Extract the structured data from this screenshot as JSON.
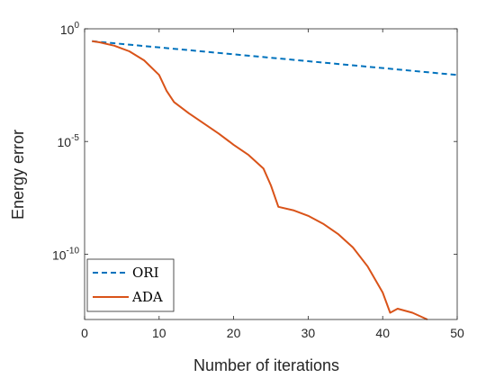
{
  "chart_data": {
    "type": "line",
    "xlabel": "Number of iterations",
    "ylabel": "Energy error",
    "xlim": [
      0,
      50
    ],
    "ylim_exp": [
      -12.9,
      0
    ],
    "y_scale": "log",
    "x_ticks": [
      0,
      10,
      20,
      30,
      40,
      50
    ],
    "x_tick_labels": [
      "0",
      "10",
      "20",
      "30",
      "40",
      "50"
    ],
    "y_ticks": [
      {
        "exp": 0,
        "label_base": "10",
        "label_exp": "0"
      },
      {
        "exp": -5,
        "label_base": "10",
        "label_exp": "-5"
      },
      {
        "exp": -10,
        "label_base": "10",
        "label_exp": "-10"
      }
    ],
    "grid": false,
    "legend_position": "bottom-left",
    "series": [
      {
        "name": "ORI",
        "color": "#0072BD",
        "dash": "dashed",
        "x": [
          1,
          50
        ],
        "log10_y": [
          -0.55,
          -2.05
        ]
      },
      {
        "name": "ADA",
        "color": "#D95319",
        "dash": "solid",
        "x": [
          1,
          2,
          4,
          6,
          8,
          10,
          11,
          12,
          14,
          16,
          18,
          20,
          22,
          24,
          25,
          26,
          28,
          30,
          32,
          34,
          36,
          38,
          40,
          41,
          42,
          44,
          46
        ],
        "log10_y": [
          -0.55,
          -0.6,
          -0.75,
          -1.0,
          -1.4,
          -2.05,
          -2.75,
          -3.25,
          -3.75,
          -4.2,
          -4.65,
          -5.15,
          -5.6,
          -6.2,
          -6.95,
          -7.9,
          -8.05,
          -8.3,
          -8.65,
          -9.1,
          -9.7,
          -10.55,
          -11.7,
          -12.6,
          -12.42,
          -12.6,
          -12.9
        ]
      }
    ]
  }
}
